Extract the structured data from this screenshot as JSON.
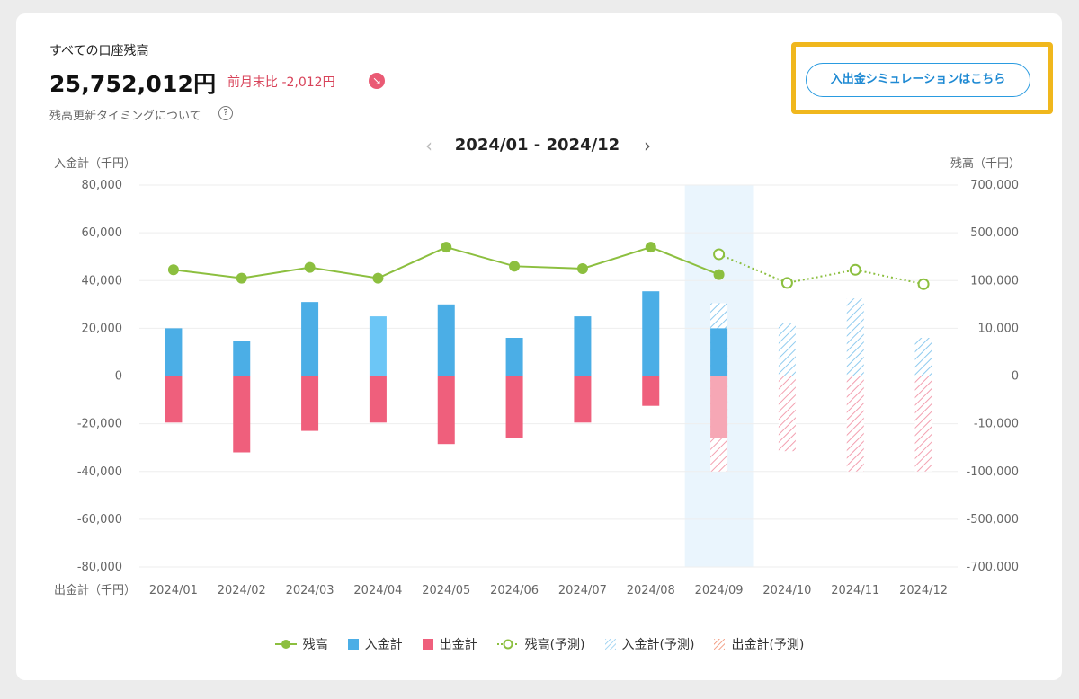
{
  "header": {
    "title": "すべての口座残高",
    "balance": "25,752,012円",
    "month_diff": "前月末比  -2,012円",
    "diff_icon": "↘",
    "timing_link": "残高更新タイミングについて",
    "help_icon": "?",
    "simulation_button": "入出金シミュレーションはこちら"
  },
  "period": {
    "label": "2024/01 - 2024/12",
    "prev_icon": "‹",
    "next_icon": "›"
  },
  "colors": {
    "deposit": "#4baee6",
    "deposit_selected": "#6cc6f6",
    "withdrawal": "#ef5f7c",
    "withdrawal_forecast": "#f6a7b5",
    "balance": "#8cbf3f",
    "highlight_column": "#eaf5fd",
    "frame": "#f0b71d"
  },
  "chart_data": {
    "type": "bar",
    "categories": [
      "2024/01",
      "2024/02",
      "2024/03",
      "2024/04",
      "2024/05",
      "2024/06",
      "2024/07",
      "2024/08",
      "2024/09",
      "2024/10",
      "2024/11",
      "2024/12"
    ],
    "left_axis": {
      "label_top": "入金計（千円）",
      "label_bottom": "出金計（千円）",
      "ticks": [
        "80,000",
        "60,000",
        "40,000",
        "20,000",
        "0",
        "-20,000",
        "-40,000",
        "-60,000",
        "-80,000"
      ],
      "ylim": [
        -80000,
        80000
      ]
    },
    "right_axis": {
      "label": "残高（千円）",
      "ticks": [
        "700,000",
        "500,000",
        "100,000",
        "10,000",
        "0",
        "-10,000",
        "-100,000",
        "-500,000",
        "-700,000"
      ]
    },
    "highlighted_category": "2024/09",
    "series": [
      {
        "name": "入金計",
        "values": [
          20000,
          14500,
          31000,
          25000,
          30000,
          16000,
          25000,
          35500,
          20000,
          null,
          null,
          null
        ]
      },
      {
        "name": "出金計",
        "values": [
          -19500,
          -32000,
          -23000,
          -19500,
          -28500,
          -26000,
          -19500,
          -12500,
          -26000,
          null,
          null,
          null
        ]
      },
      {
        "name": "入金計(予測)",
        "values": [
          null,
          null,
          null,
          null,
          null,
          null,
          null,
          null,
          30500,
          22000,
          32500,
          16000
        ]
      },
      {
        "name": "出金計(予測)",
        "values": [
          null,
          null,
          null,
          null,
          null,
          null,
          null,
          null,
          -40000,
          -31500,
          -40000,
          -40000
        ]
      },
      {
        "name": "残高",
        "values": [
          44500,
          41000,
          45500,
          41000,
          54000,
          46000,
          45000,
          54000,
          42500,
          null,
          null,
          null
        ]
      },
      {
        "name": "残高(予測)",
        "values": [
          null,
          null,
          null,
          null,
          null,
          null,
          null,
          null,
          51000,
          39000,
          44500,
          38500
        ]
      }
    ],
    "legend": [
      "残高",
      "入金計",
      "出金計",
      "残高(予測)",
      "入金計(予測)",
      "出金計(予測)"
    ],
    "legend_position": "bottom"
  }
}
